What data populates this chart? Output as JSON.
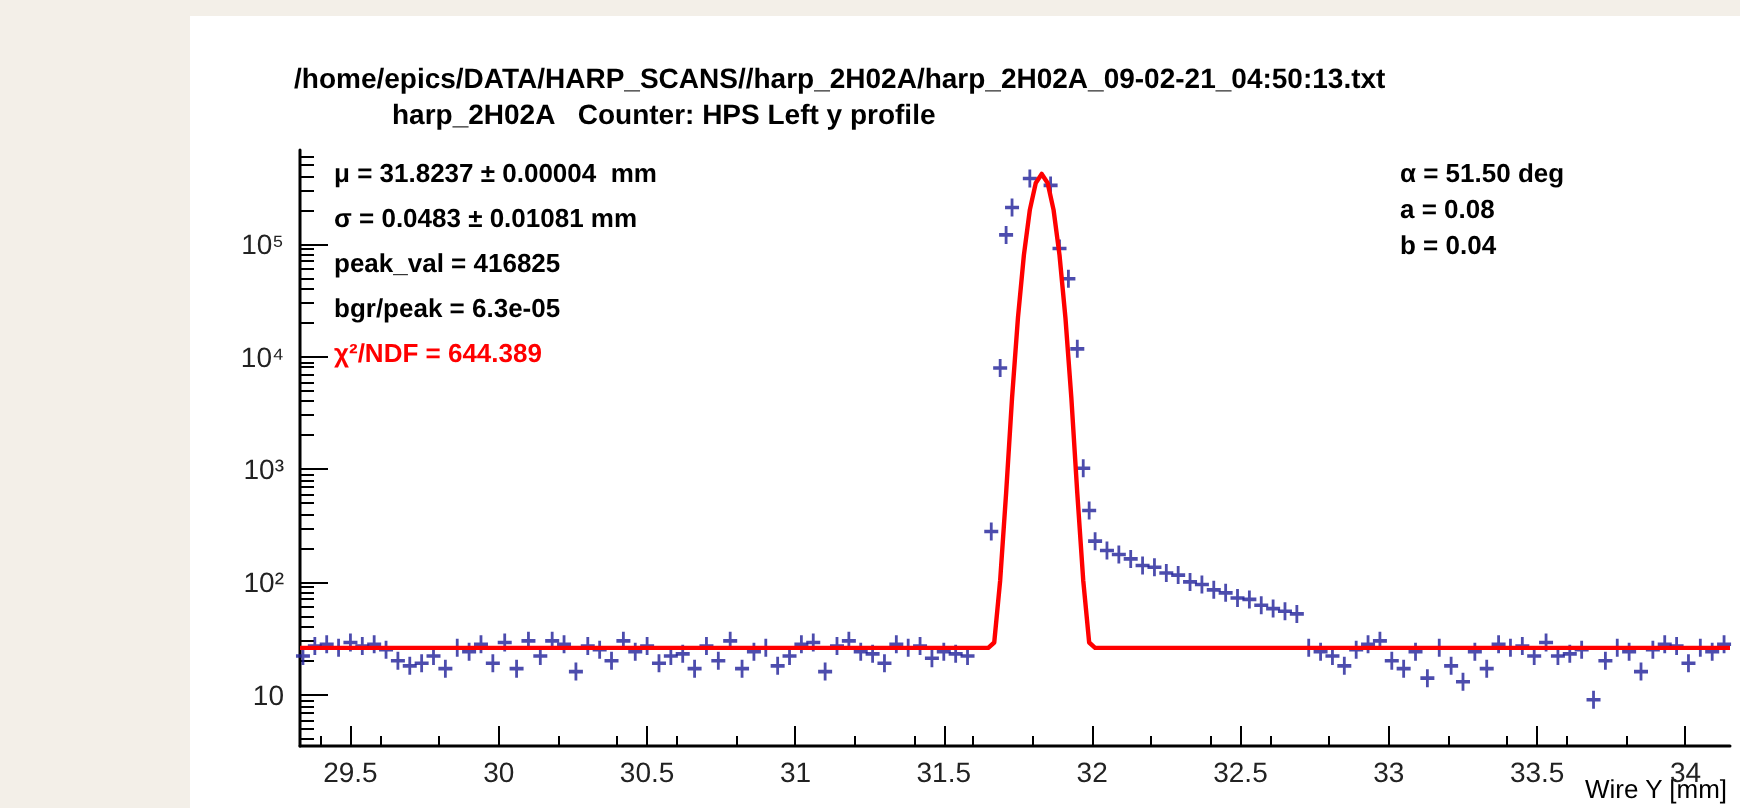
{
  "chart_data": {
    "type": "scatter",
    "title": "/home/epics/DATA/HARP_SCANS//harp_2H02A/harp_2H02A_09-02-21_04:50:13.txt",
    "subtitle": "harp_2H02A   Counter: HPS Left y profile",
    "xlabel": "Wire Y [mm]",
    "annotations": [
      "μ = 31.8237 ± 0.00004  mm",
      "σ = 0.0483 ± 0.01081 mm",
      "peak_val = 416825",
      "bgr/peak = 6.3e-05",
      "χ²/NDF = 644.389",
      "α = 51.50 deg",
      "a = 0.08",
      "b = 0.04"
    ],
    "log": "y",
    "xlim": [
      29.33,
      34.15
    ],
    "xticks": [
      29.5,
      30,
      30.5,
      31,
      31.5,
      32,
      32.5,
      33,
      33.5,
      34
    ],
    "ylim": [
      3.5,
      680000
    ],
    "yticks": [
      10,
      {
        "value": 100,
        "label": "10²"
      },
      {
        "value": 1000,
        "label": "10³"
      },
      {
        "value": 10000,
        "label": "10⁴"
      },
      {
        "value": 100000,
        "label": "10⁵"
      }
    ],
    "grid": false,
    "series": [
      {
        "color": "#1f1f99",
        "marker": "cross",
        "x": [
          29.34,
          29.38,
          29.42,
          29.46,
          29.5,
          29.54,
          29.58,
          29.62,
          29.66,
          29.7,
          29.74,
          29.78,
          29.82,
          29.86,
          29.9,
          29.94,
          29.98,
          30.02,
          30.06,
          30.1,
          30.14,
          30.18,
          30.22,
          30.26,
          30.3,
          30.34,
          30.38,
          30.42,
          30.46,
          30.5,
          30.54,
          30.58,
          30.62,
          30.66,
          30.7,
          30.74,
          30.78,
          30.82,
          30.86,
          30.9,
          30.94,
          30.98,
          31.02,
          31.06,
          31.1,
          31.14,
          31.18,
          31.22,
          31.26,
          31.3,
          31.34,
          31.38,
          31.42,
          31.46,
          31.5,
          31.54,
          31.58,
          31.66,
          31.69,
          31.71,
          31.73,
          31.79,
          31.86,
          31.89,
          31.92,
          31.95,
          31.97,
          31.99,
          32.01,
          32.05,
          32.09,
          32.13,
          32.17,
          32.21,
          32.25,
          32.29,
          32.33,
          32.37,
          32.41,
          32.45,
          32.49,
          32.53,
          32.57,
          32.61,
          32.65,
          32.69,
          32.73,
          32.77,
          32.81,
          32.85,
          32.89,
          32.93,
          32.97,
          33.01,
          33.05,
          33.09,
          33.13,
          33.17,
          33.21,
          33.25,
          33.29,
          33.33,
          33.37,
          33.41,
          33.45,
          33.49,
          33.53,
          33.57,
          33.61,
          33.65,
          33.69,
          33.73,
          33.77,
          33.81,
          33.85,
          33.89,
          33.93,
          33.97,
          34.01,
          34.05,
          34.09,
          34.13
        ],
        "values": [
          22,
          27,
          28,
          26,
          29,
          27,
          28,
          25,
          20,
          18,
          19,
          22,
          17,
          26,
          24,
          28,
          19,
          29,
          17,
          30,
          22,
          30,
          28,
          16,
          27,
          25,
          20,
          30,
          24,
          27,
          19,
          22,
          23,
          17,
          27,
          20,
          30,
          17,
          24,
          26,
          18,
          22,
          28,
          29,
          16,
          27,
          30,
          24,
          23,
          19,
          28,
          26,
          27,
          21,
          24,
          23,
          22,
          280,
          7900,
          120000,
          210000,
          380000,
          330000,
          91000,
          49000,
          11700,
          1020,
          430,
          230,
          190,
          175,
          160,
          140,
          135,
          120,
          115,
          100,
          95,
          85,
          80,
          72,
          70,
          62,
          58,
          55,
          52,
          26,
          24,
          22,
          18,
          25,
          28,
          30,
          20,
          17,
          24,
          14,
          26,
          18,
          13,
          24,
          17,
          28,
          26,
          27,
          22,
          29,
          22,
          23,
          25,
          9,
          20,
          26,
          24,
          16,
          25,
          28,
          27,
          19,
          26,
          24,
          28
        ]
      },
      {
        "type": "line",
        "color": "#ff0000",
        "marker": "none",
        "line_style": "solid",
        "x": [
          29.33,
          31.63,
          31.65,
          31.67,
          31.69,
          31.71,
          31.73,
          31.75,
          31.77,
          31.79,
          31.81,
          31.83,
          31.85,
          31.87,
          31.89,
          31.91,
          31.93,
          31.95,
          31.97,
          31.99,
          32.01,
          34.15
        ],
        "values": [
          26,
          26,
          26,
          29,
          103,
          611,
          4270,
          22100,
          79700,
          200000,
          347000,
          417000,
          347000,
          200000,
          79700,
          22100,
          4270,
          611,
          103,
          29,
          26,
          26
        ]
      }
    ]
  }
}
